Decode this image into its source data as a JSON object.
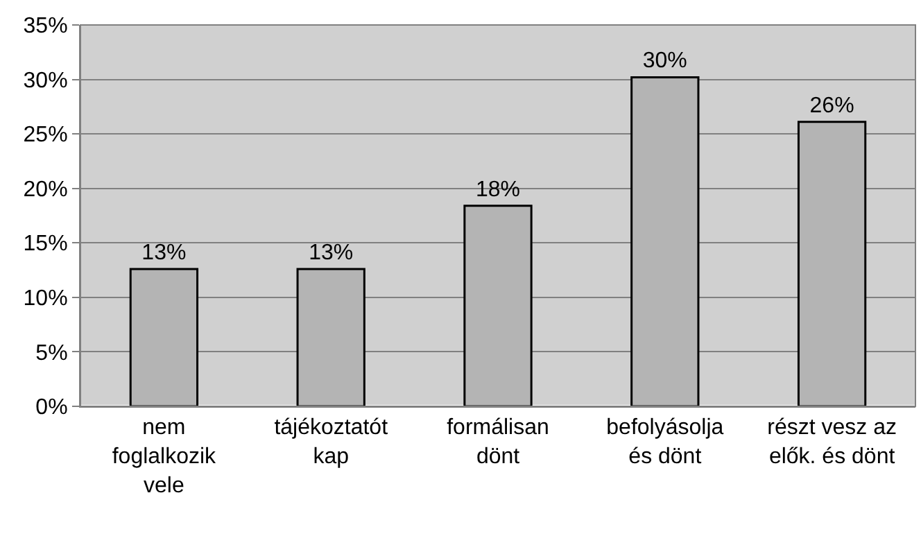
{
  "chart_data": {
    "type": "bar",
    "categories": [
      "nem foglalkozik vele",
      "tájékoztatót kap",
      "formálisan dönt",
      "befolyásolja és dönt",
      "részt vesz az elők. és dönt"
    ],
    "values": [
      12.6,
      12.6,
      18.4,
      30.2,
      26.1
    ],
    "value_labels": [
      "13%",
      "13%",
      "18%",
      "30%",
      "26%"
    ],
    "color": "#b4b4b4",
    "ylim": [
      0,
      35
    ],
    "yticks": [
      {
        "value": 0,
        "label": "0%"
      },
      {
        "value": 5,
        "label": "5%"
      },
      {
        "value": 10,
        "label": "10%"
      },
      {
        "value": 15,
        "label": "15%"
      },
      {
        "value": 20,
        "label": "20%"
      },
      {
        "value": 25,
        "label": "25%"
      },
      {
        "value": 30,
        "label": "30%"
      },
      {
        "value": 35,
        "label": "35%"
      }
    ],
    "grid": "y",
    "legend": false
  }
}
